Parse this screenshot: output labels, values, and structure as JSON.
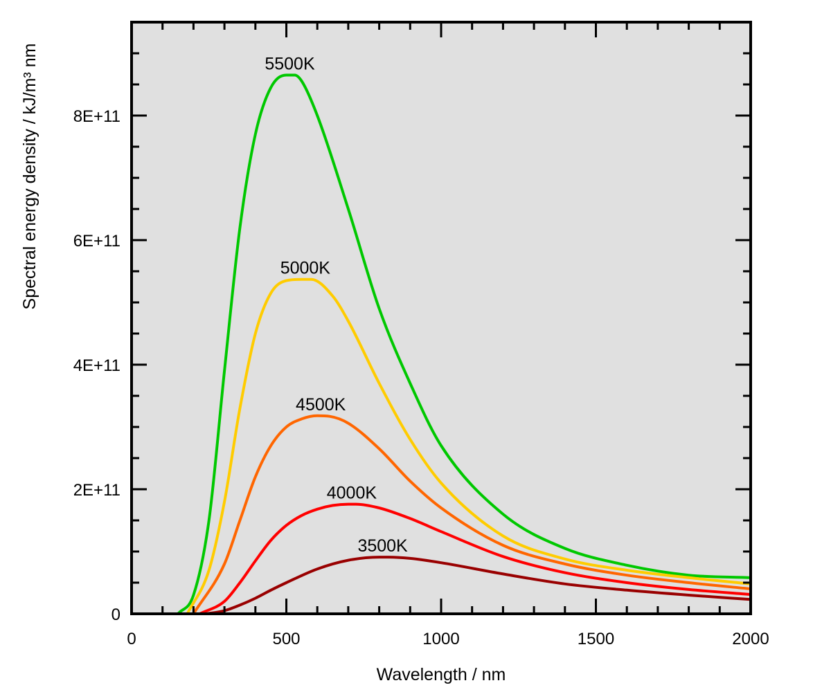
{
  "chart_data": {
    "type": "line",
    "title": "",
    "xlabel": "Wavelength / nm",
    "ylabel": "Spectral energy density / kJ/m³ nm",
    "xlim": [
      0,
      2000
    ],
    "ylim": [
      0,
      950000000000
    ],
    "x_ticks": [
      0,
      500,
      1000,
      1500,
      2000
    ],
    "x_tick_labels": [
      "0",
      "500",
      "1000",
      "1500",
      "2000"
    ],
    "y_ticks": [
      0,
      200000000000,
      400000000000,
      600000000000,
      800000000000
    ],
    "y_tick_labels": [
      "0",
      "2E+11",
      "4E+11",
      "6E+11",
      "8E+11"
    ],
    "plot_background": "#e0e0e0",
    "grid": false,
    "legend": "none (curves labeled directly)",
    "series": [
      {
        "name": "5500K",
        "color": "#00c800",
        "x": [
          150,
          200,
          250,
          300,
          350,
          400,
          450,
          500,
          527,
          550,
          600,
          700,
          800,
          900,
          1000,
          1200,
          1400,
          1600,
          1800,
          2000
        ],
        "y": [
          0,
          30000000000,
          150000000000,
          390000000000,
          620000000000,
          770000000000,
          845000000000,
          865000000000,
          865000000000,
          855000000000,
          800000000000,
          650000000000,
          490000000000,
          370000000000,
          270000000000,
          160000000000,
          105000000000,
          78000000000,
          62000000000,
          58000000000
        ]
      },
      {
        "name": "5000K",
        "color": "#ffcc00",
        "x": [
          180,
          250,
          300,
          350,
          400,
          450,
          500,
          550,
          580,
          650,
          700,
          800,
          900,
          1000,
          1200,
          1400,
          1600,
          1800,
          2000
        ],
        "y": [
          0,
          70000000000,
          180000000000,
          330000000000,
          450000000000,
          515000000000,
          535000000000,
          537000000000,
          537000000000,
          510000000000,
          470000000000,
          370000000000,
          280000000000,
          210000000000,
          125000000000,
          88000000000,
          70000000000,
          58000000000,
          48000000000
        ]
      },
      {
        "name": "4500K",
        "color": "#ff6600",
        "x": [
          200,
          300,
          350,
          400,
          450,
          500,
          550,
          600,
          640,
          700,
          800,
          900,
          1000,
          1200,
          1400,
          1600,
          1800,
          2000
        ],
        "y": [
          0,
          80000000000,
          150000000000,
          220000000000,
          270000000000,
          300000000000,
          313000000000,
          318000000000,
          317000000000,
          306000000000,
          265000000000,
          213000000000,
          170000000000,
          110000000000,
          80000000000,
          62000000000,
          50000000000,
          40000000000
        ]
      },
      {
        "name": "4000K",
        "color": "#ff0000",
        "x": [
          220,
          300,
          350,
          400,
          450,
          500,
          550,
          600,
          650,
          700,
          725,
          800,
          900,
          1000,
          1200,
          1400,
          1600,
          1800,
          2000
        ],
        "y": [
          0,
          20000000000,
          50000000000,
          85000000000,
          118000000000,
          142000000000,
          158000000000,
          168000000000,
          174000000000,
          176000000000,
          176000000000,
          170000000000,
          153000000000,
          132000000000,
          92000000000,
          66000000000,
          50000000000,
          39000000000,
          31000000000
        ]
      },
      {
        "name": "3500K",
        "color": "#990000",
        "x": [
          240,
          300,
          350,
          400,
          450,
          500,
          600,
          700,
          800,
          830,
          900,
          1000,
          1200,
          1400,
          1600,
          1800,
          2000
        ],
        "y": [
          0,
          5000000000,
          14000000000,
          25000000000,
          38000000000,
          50000000000,
          72000000000,
          86000000000,
          91000000000,
          91000000000,
          89000000000,
          82000000000,
          64000000000,
          48000000000,
          38000000000,
          30000000000,
          23000000000
        ]
      }
    ]
  }
}
